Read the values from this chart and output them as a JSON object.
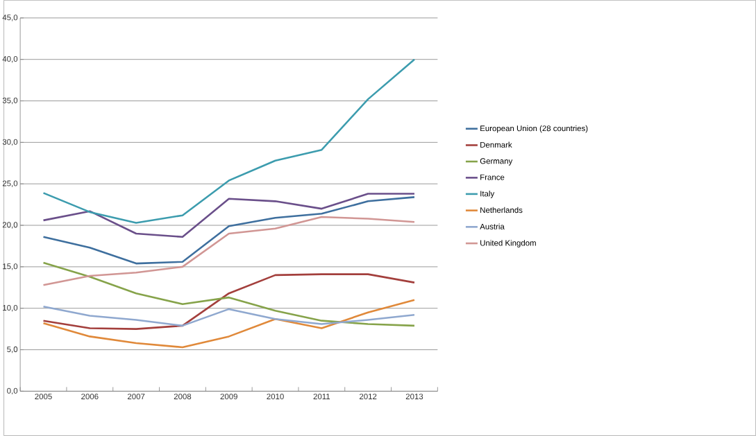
{
  "chart_data": {
    "type": "line",
    "categories": [
      "2005",
      "2006",
      "2007",
      "2008",
      "2009",
      "2010",
      "2011",
      "2012",
      "2013"
    ],
    "ylim": [
      0,
      45
    ],
    "yticks": [
      {
        "value": 0,
        "label": "0,0"
      },
      {
        "value": 5,
        "label": "5,0"
      },
      {
        "value": 10,
        "label": "10,0"
      },
      {
        "value": 15,
        "label": "15,0"
      },
      {
        "value": 20,
        "label": "20,0"
      },
      {
        "value": 25,
        "label": "25,0"
      },
      {
        "value": 30,
        "label": "30,0"
      },
      {
        "value": 35,
        "label": "35,0"
      },
      {
        "value": 40,
        "label": "40,0"
      },
      {
        "value": 45,
        "label": "45,0"
      }
    ],
    "grid": "y",
    "legend": "right",
    "marker": "none",
    "series": [
      {
        "name": "European Union (28 countries)",
        "color": "#3e6f9e",
        "values": [
          18.6,
          17.3,
          15.4,
          15.6,
          19.9,
          20.9,
          21.4,
          22.9,
          23.4
        ]
      },
      {
        "name": "Denmark",
        "color": "#a33f3c",
        "values": [
          8.5,
          7.6,
          7.5,
          7.9,
          11.8,
          14.0,
          14.1,
          14.1,
          13.1
        ]
      },
      {
        "name": "Germany",
        "color": "#86a34a",
        "values": [
          15.5,
          13.8,
          11.8,
          10.5,
          11.3,
          9.7,
          8.5,
          8.1,
          7.9
        ]
      },
      {
        "name": "France",
        "color": "#6a4f8a",
        "values": [
          20.6,
          21.7,
          19.0,
          18.6,
          23.2,
          22.9,
          22.0,
          23.8,
          23.8
        ]
      },
      {
        "name": "Italy",
        "color": "#3c9cae",
        "values": [
          23.9,
          21.6,
          20.3,
          21.2,
          25.4,
          27.8,
          29.1,
          35.2,
          40.0
        ]
      },
      {
        "name": "Netherlands",
        "color": "#e0893a",
        "values": [
          8.2,
          6.6,
          5.8,
          5.3,
          6.6,
          8.7,
          7.6,
          9.5,
          11.0
        ]
      },
      {
        "name": "Austria",
        "color": "#8fa8cf",
        "values": [
          10.2,
          9.1,
          8.6,
          7.9,
          9.9,
          8.7,
          8.1,
          8.6,
          9.2
        ]
      },
      {
        "name": "United Kingdom",
        "color": "#d19694",
        "values": [
          12.8,
          13.9,
          14.3,
          15.0,
          19.0,
          19.6,
          21.0,
          20.8,
          20.4
        ]
      }
    ]
  }
}
